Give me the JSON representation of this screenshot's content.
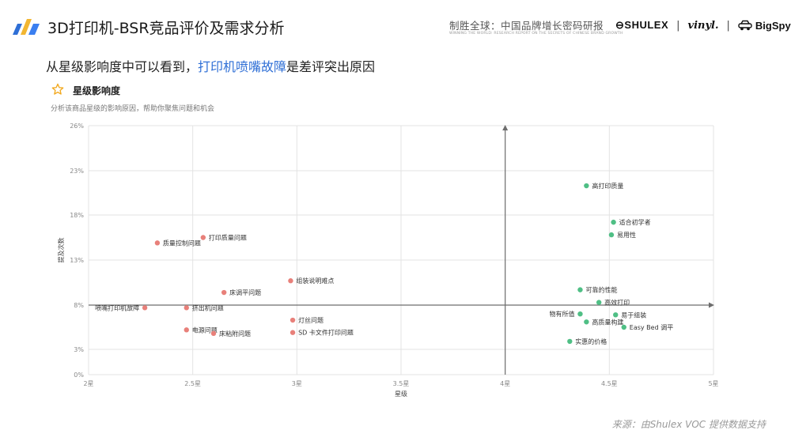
{
  "header": {
    "title": "3D打印机-BSR竞品评价及需求分析",
    "tagline": "制胜全球：中国品牌增长密码研报",
    "tagline_sub": "WINNING THE WORLD: RESEARCH REPORT ON THE SECRETS OF CHINESE BRAND GROWTH",
    "brand_shulex": "SHULEX",
    "brand_vinyl": "vinyl.",
    "brand_bigspy": "BigSpy",
    "separator": "|"
  },
  "subtitle": {
    "prefix": "从星级影响度中可以看到，",
    "highlight": "打印机喷嘴故障",
    "suffix": "是差评突出原因"
  },
  "card": {
    "icon": "star-icon",
    "title": "星级影响度",
    "description": "分析该商品星级的影响原因，帮助你聚焦问题和机会"
  },
  "colors": {
    "negative": "#e8807a",
    "positive": "#4fbf85",
    "highlight": "#2f6fd6",
    "grid": "#e3e3e3",
    "axis": "#6d6d6d"
  },
  "chart_data": {
    "type": "scatter",
    "xlabel": "星级",
    "ylabel": "提及次数",
    "xlim": [
      2,
      5
    ],
    "ylim": [
      0,
      26
    ],
    "x_ticks": [
      2,
      2.5,
      3,
      3.5,
      4,
      4.5,
      5
    ],
    "x_tick_labels": [
      "2星",
      "2.5星",
      "3星",
      "3.5星",
      "4星",
      "4.5星",
      "5星"
    ],
    "y_ticks": [
      0,
      3,
      8,
      13,
      18,
      23,
      26
    ],
    "y_tick_labels": [
      "0%",
      "3%",
      "8%",
      "13%",
      "18%",
      "23%",
      "26%"
    ],
    "quadrant_origin": {
      "x": 4,
      "y": 8
    },
    "grid": true,
    "series": [
      {
        "group": "negative",
        "points": [
          {
            "label": "打印质量问题",
            "x": 2.55,
            "y": 15.5
          },
          {
            "label": "质量控制问题",
            "x": 2.33,
            "y": 14.9
          },
          {
            "label": "组装说明难点",
            "x": 2.97,
            "y": 10.7
          },
          {
            "label": "床调平问题",
            "x": 2.65,
            "y": 9.4
          },
          {
            "label": "喷嘴打印机故障",
            "x": 2.27,
            "y": 7.7
          },
          {
            "label": "挤出机问题",
            "x": 2.47,
            "y": 7.7
          },
          {
            "label": "灯丝问题",
            "x": 2.98,
            "y": 6.3
          },
          {
            "label": "电源问题",
            "x": 2.47,
            "y": 5.2
          },
          {
            "label": "床粘附问题",
            "x": 2.6,
            "y": 4.8
          },
          {
            "label": "SD 卡文件打印问题",
            "x": 2.98,
            "y": 4.9
          }
        ]
      },
      {
        "group": "positive",
        "points": [
          {
            "label": "高打印质量",
            "x": 4.39,
            "y": 21.3
          },
          {
            "label": "适合初学者",
            "x": 4.52,
            "y": 17.2
          },
          {
            "label": "易用性",
            "x": 4.51,
            "y": 15.8
          },
          {
            "label": "可靠的性能",
            "x": 4.36,
            "y": 9.7
          },
          {
            "label": "高效打印",
            "x": 4.45,
            "y": 8.3
          },
          {
            "label": "物有所值",
            "x": 4.36,
            "y": 7.0
          },
          {
            "label": "易于组装",
            "x": 4.53,
            "y": 6.9
          },
          {
            "label": "高质量构建",
            "x": 4.39,
            "y": 6.1
          },
          {
            "label": "Easy Bed 调平",
            "x": 4.57,
            "y": 5.5
          },
          {
            "label": "实惠的价格",
            "x": 4.31,
            "y": 3.9
          }
        ]
      }
    ]
  },
  "source": "来源：由Shulex VOC 提供数据支持"
}
